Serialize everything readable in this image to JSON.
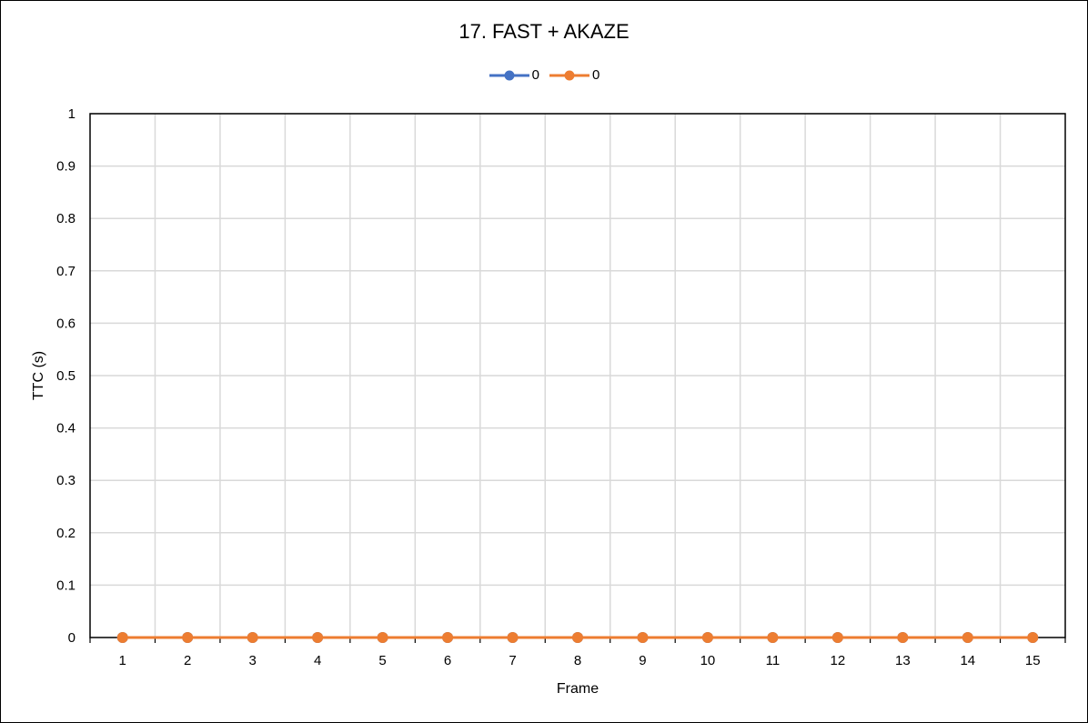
{
  "chart_data": {
    "type": "line",
    "title": "17. FAST + AKAZE",
    "xlabel": "Frame",
    "ylabel": "TTC (s)",
    "categories": [
      "1",
      "2",
      "3",
      "4",
      "5",
      "6",
      "7",
      "8",
      "9",
      "10",
      "11",
      "12",
      "13",
      "14",
      "15"
    ],
    "ylim": [
      0,
      1
    ],
    "yticks": [
      "0",
      "0.1",
      "0.2",
      "0.3",
      "0.4",
      "0.5",
      "0.6",
      "0.7",
      "0.8",
      "0.9",
      "1"
    ],
    "grid": true,
    "legend_position": "top",
    "series": [
      {
        "name": "0",
        "color": "#4472C4",
        "values": [
          0,
          0,
          0,
          0,
          0,
          0,
          0,
          0,
          0,
          0,
          0,
          0,
          0,
          0,
          0
        ]
      },
      {
        "name": "0",
        "color": "#ED7D31",
        "values": [
          0,
          0,
          0,
          0,
          0,
          0,
          0,
          0,
          0,
          0,
          0,
          0,
          0,
          0,
          0
        ]
      }
    ]
  }
}
